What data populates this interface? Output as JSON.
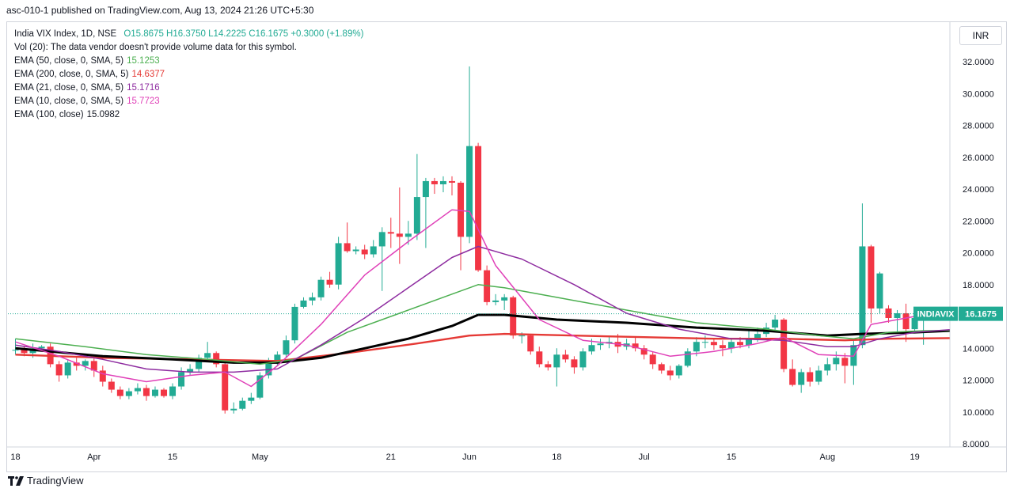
{
  "header": {
    "published": "asc-010-1 published on TradingView.com, Aug 13, 2024 21:26 UTC+5:30"
  },
  "legend": {
    "symbol": "India VIX Index, 1D, NSE",
    "ohlc": "O15.8675  H16.3750  L14.2225  C16.1675  +0.3000 (+1.89%)",
    "vol": "Vol (20): The data vendor doesn't provide volume data for this symbol.",
    "ema50_label": "EMA (50, close, 0, SMA, 5)",
    "ema50_value": "15.1253",
    "ema200_label": "EMA (200, close, 0, SMA, 5)",
    "ema200_value": "14.6377",
    "ema21_label": "EMA (21, close, 0, SMA, 5)",
    "ema21_value": "15.1716",
    "ema10_label": "EMA (10, close, 0, SMA, 5)",
    "ema10_value": "15.7723",
    "ema100_label": "EMA (100, close)",
    "ema100_value": "15.0982"
  },
  "currency": "INR",
  "price_tag": {
    "symbol": "INDIAVIX",
    "value": "16.1675"
  },
  "footer": {
    "brand": "TradingView"
  },
  "colors": {
    "up": "#22ab94",
    "down": "#f23645",
    "ema10": "#e040b8",
    "ema21": "#8e2ca0",
    "ema50": "#4caf50",
    "ema100": "#000000",
    "ema200": "#e53935"
  },
  "chart_data": {
    "type": "candlestick",
    "y_ticks": [
      "8.0000",
      "10.0000",
      "12.0000",
      "14.0000",
      "16.0000",
      "18.0000",
      "20.0000",
      "22.0000",
      "24.0000",
      "26.0000",
      "28.0000",
      "30.0000",
      "32.0000"
    ],
    "ylim": [
      7.8,
      32.7
    ],
    "x_ticks": [
      {
        "label": "18",
        "index": 0
      },
      {
        "label": "Apr",
        "index": 9
      },
      {
        "label": "15",
        "index": 18
      },
      {
        "label": "May",
        "index": 28
      },
      {
        "label": "21",
        "index": 43
      },
      {
        "label": "Jun",
        "index": 52
      },
      {
        "label": "18",
        "index": 62
      },
      {
        "label": "Jul",
        "index": 72
      },
      {
        "label": "15",
        "index": 82
      },
      {
        "label": "Aug",
        "index": 93
      },
      {
        "label": "19",
        "index": 103
      }
    ],
    "last_close": 16.1675,
    "candles": [
      [
        13.9,
        13.9,
        14.6,
        13.6
      ],
      [
        13.9,
        13.7,
        14.1,
        13.5
      ],
      [
        13.7,
        14.0,
        14.3,
        13.4
      ],
      [
        14.0,
        14.1,
        14.2,
        13.8
      ],
      [
        14.1,
        13.0,
        14.3,
        12.8
      ],
      [
        13.0,
        12.3,
        13.2,
        11.9
      ],
      [
        12.3,
        13.1,
        13.3,
        12.1
      ],
      [
        13.1,
        12.9,
        13.4,
        12.6
      ],
      [
        12.9,
        13.2,
        13.3,
        12.6
      ],
      [
        13.2,
        12.6,
        13.4,
        12.2
      ],
      [
        12.6,
        11.9,
        12.9,
        11.6
      ],
      [
        11.9,
        11.4,
        12.1,
        11.2
      ],
      [
        11.4,
        11.0,
        11.6,
        10.8
      ],
      [
        11.0,
        11.3,
        11.5,
        10.8
      ],
      [
        11.3,
        11.5,
        11.8,
        11.1
      ],
      [
        11.5,
        11.0,
        11.7,
        10.7
      ],
      [
        11.0,
        11.4,
        11.6,
        10.9
      ],
      [
        11.4,
        11.0,
        11.5,
        10.9
      ],
      [
        11.0,
        11.6,
        11.8,
        10.8
      ],
      [
        11.6,
        12.5,
        12.8,
        11.4
      ],
      [
        12.5,
        12.7,
        13.0,
        12.3
      ],
      [
        12.7,
        13.4,
        13.6,
        12.5
      ],
      [
        13.4,
        13.7,
        14.4,
        13.2
      ],
      [
        13.7,
        13.0,
        13.8,
        12.8
      ],
      [
        13.0,
        10.1,
        13.1,
        9.9
      ],
      [
        10.1,
        10.2,
        10.6,
        9.9
      ],
      [
        10.2,
        10.7,
        10.9,
        10.1
      ],
      [
        10.7,
        10.9,
        11.2,
        10.5
      ],
      [
        10.9,
        12.3,
        12.5,
        10.8
      ],
      [
        12.3,
        13.2,
        13.4,
        12.1
      ],
      [
        13.2,
        13.6,
        13.8,
        12.9
      ],
      [
        13.6,
        14.5,
        14.8,
        13.4
      ],
      [
        14.5,
        16.6,
        16.8,
        14.3
      ],
      [
        16.6,
        17.0,
        17.2,
        16.5
      ],
      [
        17.0,
        17.2,
        17.5,
        16.7
      ],
      [
        17.2,
        18.3,
        18.5,
        17.0
      ],
      [
        18.3,
        18.0,
        18.8,
        17.8
      ],
      [
        18.0,
        20.6,
        21.0,
        17.7
      ],
      [
        20.6,
        20.1,
        21.9,
        20.0
      ],
      [
        20.1,
        20.2,
        20.4,
        19.9
      ],
      [
        20.2,
        19.9,
        20.5,
        19.6
      ],
      [
        19.9,
        20.4,
        20.8,
        19.7
      ],
      [
        20.4,
        21.3,
        21.6,
        17.6
      ],
      [
        21.3,
        21.2,
        22.2,
        20.3
      ],
      [
        21.2,
        21.0,
        24.1,
        19.3
      ],
      [
        21.0,
        21.2,
        22.0,
        20.5
      ],
      [
        21.2,
        23.5,
        26.2,
        20.8
      ],
      [
        23.5,
        24.5,
        24.7,
        20.3
      ],
      [
        24.5,
        24.3,
        24.7,
        23.7
      ],
      [
        24.3,
        24.5,
        24.8,
        23.8
      ],
      [
        24.5,
        24.4,
        24.8,
        23.6
      ],
      [
        24.4,
        21.0,
        24.5,
        18.9
      ],
      [
        21.0,
        26.7,
        31.7,
        20.6
      ],
      [
        26.7,
        18.9,
        26.9,
        18.8
      ],
      [
        18.9,
        16.9,
        19.2,
        16.7
      ],
      [
        16.9,
        17.0,
        17.4,
        16.7
      ],
      [
        17.0,
        17.2,
        17.4,
        16.4
      ],
      [
        17.2,
        14.8,
        17.3,
        14.6
      ],
      [
        14.8,
        14.8,
        15.0,
        14.3
      ],
      [
        14.8,
        13.8,
        14.9,
        13.6
      ],
      [
        13.8,
        13.0,
        14.1,
        12.8
      ],
      [
        13.0,
        12.8,
        13.2,
        12.6
      ],
      [
        12.8,
        13.6,
        14.0,
        11.6
      ],
      [
        13.6,
        13.3,
        13.9,
        13.1
      ],
      [
        13.3,
        12.8,
        13.5,
        12.4
      ],
      [
        12.8,
        13.8,
        14.0,
        12.6
      ],
      [
        13.8,
        14.2,
        14.6,
        13.6
      ],
      [
        14.2,
        14.3,
        14.6,
        13.9
      ],
      [
        14.3,
        14.4,
        14.7,
        14.0
      ],
      [
        14.4,
        14.1,
        14.9,
        13.7
      ],
      [
        14.1,
        14.3,
        14.6,
        13.9
      ],
      [
        14.3,
        14.0,
        14.7,
        13.8
      ],
      [
        14.0,
        13.6,
        14.2,
        13.3
      ],
      [
        13.6,
        13.0,
        13.8,
        12.7
      ],
      [
        13.0,
        12.6,
        13.1,
        12.4
      ],
      [
        12.6,
        12.3,
        12.9,
        12.0
      ],
      [
        12.3,
        12.9,
        13.0,
        12.1
      ],
      [
        12.9,
        13.8,
        14.0,
        12.8
      ],
      [
        13.8,
        14.4,
        14.7,
        13.5
      ],
      [
        14.4,
        14.4,
        14.8,
        14.0
      ],
      [
        14.4,
        14.2,
        14.6,
        13.9
      ],
      [
        14.2,
        14.0,
        14.5,
        13.5
      ],
      [
        14.0,
        14.4,
        14.6,
        13.7
      ],
      [
        14.4,
        14.2,
        14.7,
        14.0
      ],
      [
        14.2,
        14.6,
        15.1,
        14.0
      ],
      [
        14.6,
        14.9,
        15.3,
        14.4
      ],
      [
        14.9,
        15.3,
        15.6,
        14.7
      ],
      [
        15.3,
        15.8,
        16.1,
        15.1
      ],
      [
        15.8,
        12.7,
        15.9,
        12.5
      ],
      [
        12.7,
        11.7,
        13.3,
        11.6
      ],
      [
        11.7,
        12.5,
        12.7,
        11.2
      ],
      [
        12.5,
        11.9,
        12.8,
        11.6
      ],
      [
        11.9,
        12.6,
        12.9,
        11.7
      ],
      [
        12.6,
        13.0,
        13.4,
        12.3
      ],
      [
        13.0,
        13.4,
        13.8,
        12.6
      ],
      [
        13.4,
        12.9,
        13.7,
        11.8
      ],
      [
        12.9,
        14.2,
        14.6,
        11.7
      ],
      [
        14.2,
        20.4,
        23.1,
        14.0
      ],
      [
        20.4,
        16.5,
        20.5,
        15.6
      ],
      [
        16.5,
        18.7,
        18.8,
        16.2
      ],
      [
        16.5,
        15.9,
        16.7,
        15.6
      ],
      [
        15.9,
        16.2,
        16.4,
        15.0
      ],
      [
        16.2,
        15.2,
        16.8,
        14.4
      ],
      [
        15.2,
        15.9,
        16.1,
        15.1
      ],
      [
        15.9,
        16.17,
        16.38,
        14.22
      ]
    ],
    "series": [
      {
        "name": "EMA (10, close, 0, SMA, 5)",
        "key": "ema10",
        "values": [
          [
            0,
            14.4
          ],
          [
            5,
            13.5
          ],
          [
            10,
            12.4
          ],
          [
            15,
            11.9
          ],
          [
            20,
            12.3
          ],
          [
            24,
            12.5
          ],
          [
            27,
            11.6
          ],
          [
            30,
            12.9
          ],
          [
            35,
            15.5
          ],
          [
            40,
            18.6
          ],
          [
            45,
            20.7
          ],
          [
            50,
            22.7
          ],
          [
            52,
            22.6
          ],
          [
            55,
            19.2
          ],
          [
            60,
            15.8
          ],
          [
            65,
            14.5
          ],
          [
            70,
            14.2
          ],
          [
            75,
            13.5
          ],
          [
            80,
            13.8
          ],
          [
            85,
            14.3
          ],
          [
            88,
            14.7
          ],
          [
            92,
            13.6
          ],
          [
            96,
            13.5
          ],
          [
            98,
            15.5
          ],
          [
            103,
            16.0
          ],
          [
            107,
            15.77
          ]
        ]
      },
      {
        "name": "EMA (21, close, 0, SMA, 5)",
        "key": "ema21",
        "values": [
          [
            0,
            14.2
          ],
          [
            5,
            13.8
          ],
          [
            10,
            13.3
          ],
          [
            15,
            12.7
          ],
          [
            20,
            12.5
          ],
          [
            25,
            12.5
          ],
          [
            30,
            12.7
          ],
          [
            35,
            14.2
          ],
          [
            40,
            15.9
          ],
          [
            45,
            17.8
          ],
          [
            50,
            19.7
          ],
          [
            53,
            20.4
          ],
          [
            58,
            19.6
          ],
          [
            64,
            18.0
          ],
          [
            70,
            16.2
          ],
          [
            76,
            15.2
          ],
          [
            82,
            14.6
          ],
          [
            88,
            14.5
          ],
          [
            93,
            14.1
          ],
          [
            96,
            14.1
          ],
          [
            99,
            14.6
          ],
          [
            103,
            15.0
          ],
          [
            107,
            15.17
          ]
        ]
      },
      {
        "name": "EMA (50, close, 0, SMA, 5)",
        "key": "ema50",
        "values": [
          [
            0,
            14.6
          ],
          [
            8,
            14.1
          ],
          [
            15,
            13.6
          ],
          [
            22,
            13.3
          ],
          [
            28,
            13.0
          ],
          [
            32,
            13.3
          ],
          [
            38,
            15.0
          ],
          [
            44,
            16.2
          ],
          [
            50,
            17.4
          ],
          [
            53,
            18.0
          ],
          [
            56,
            17.8
          ],
          [
            62,
            17.2
          ],
          [
            70,
            16.4
          ],
          [
            78,
            15.6
          ],
          [
            86,
            15.2
          ],
          [
            92,
            14.8
          ],
          [
            96,
            14.6
          ],
          [
            100,
            15.0
          ],
          [
            104,
            15.1
          ],
          [
            107,
            15.13
          ]
        ]
      },
      {
        "name": "EMA (100, close)",
        "key": "ema100",
        "values": [
          [
            0,
            14.0
          ],
          [
            10,
            13.5
          ],
          [
            18,
            13.3
          ],
          [
            25,
            13.1
          ],
          [
            30,
            13.1
          ],
          [
            35,
            13.4
          ],
          [
            40,
            14.0
          ],
          [
            45,
            14.6
          ],
          [
            50,
            15.4
          ],
          [
            53,
            16.1
          ],
          [
            56,
            16.1
          ],
          [
            62,
            15.8
          ],
          [
            70,
            15.6
          ],
          [
            78,
            15.3
          ],
          [
            86,
            15.1
          ],
          [
            93,
            14.8
          ],
          [
            97,
            14.9
          ],
          [
            103,
            15.0
          ],
          [
            107,
            15.1
          ]
        ]
      },
      {
        "name": "EMA (200, close, 0, SMA, 5)",
        "key": "ema200",
        "values": [
          [
            0,
            13.6
          ],
          [
            10,
            13.4
          ],
          [
            20,
            13.3
          ],
          [
            30,
            13.2
          ],
          [
            38,
            13.7
          ],
          [
            46,
            14.3
          ],
          [
            52,
            14.8
          ],
          [
            56,
            14.9
          ],
          [
            64,
            14.8
          ],
          [
            72,
            14.7
          ],
          [
            80,
            14.6
          ],
          [
            88,
            14.6
          ],
          [
            95,
            14.5
          ],
          [
            100,
            14.6
          ],
          [
            107,
            14.64
          ]
        ]
      }
    ]
  }
}
